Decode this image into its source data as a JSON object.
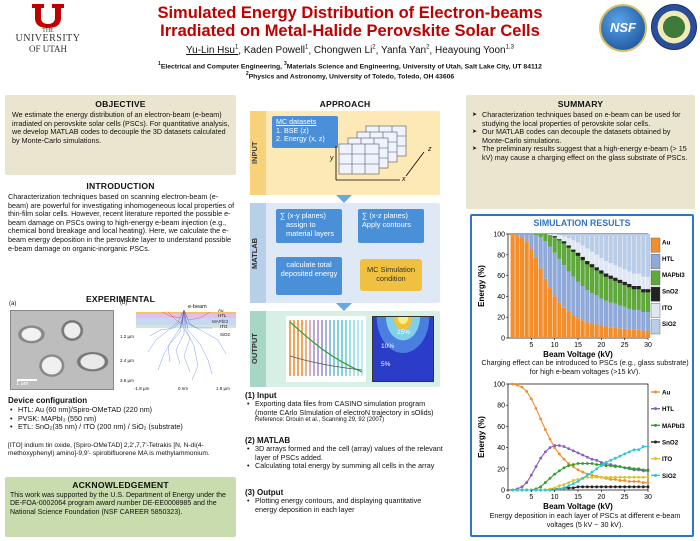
{
  "header": {
    "logo_text": [
      "THE",
      "UNIVERSITY",
      "OF UTAH"
    ],
    "title_line1": "Simulated Energy Distribution of Electron-beams",
    "title_line2": "Irradiated on Metal-Halide Perovskite Solar Cells",
    "authors": [
      {
        "name": "Yu-Lin Hsu",
        "sup": "1"
      },
      {
        "name": "Kaden Powell",
        "sup": "1"
      },
      {
        "name": "Chongwen Li",
        "sup": "2"
      },
      {
        "name": "Yanfa Yan",
        "sup": "2"
      },
      {
        "name": "Heayoung Yoon",
        "sup": "1,3"
      }
    ],
    "affil1_sup": "1",
    "affil1a": "Electrical and Computer Engineering,",
    "affil1_sup3": "3",
    "affil1b": "Materials Science and Engineering, University of Utah, Salt Lake City, UT 84112",
    "affil2_sup": "2",
    "affil2": "Physics and Astronomy, University of Toledo, Toledo, OH 43606",
    "nsf_logo_text": "NSF"
  },
  "objective": {
    "heading": "OBJECTIVE",
    "text": "We estimate the energy distribution of an electron-beam (e-beam) irradiated on perovskite solar cells (PSCs). For quantitative analysis, we develop MATLAB codes to decouple the 3D datasets calculated by Monte-Carlo simulations."
  },
  "introduction": {
    "heading": "INTRODUCTION",
    "text": "Characterization techniques based on scanning electron-beam (e-beam) are powerful for investigating inhomogeneous local properties of thin-film solar cells. However, recent literature reported the possible e-beam damage on PSCs owing to high-energy e-beam injection (e.g., chemical bond breakage and local heating). Here, we calculate the e-beam energy deposition in the perovskite layer to understand possible e-beam damage on organic-inorganic PSCs."
  },
  "experimental": {
    "heading": "EXPERIMENTAL",
    "label_a": "(a)",
    "label_b": "(b)",
    "scale_bar": "1 µm",
    "ebeam_label": "e-beam",
    "layer_labels": [
      "Au",
      "HTL",
      "MAPbI3",
      "ITO",
      "SiO2"
    ],
    "depth_labels": [
      "1.2 µm",
      "2.4 µm",
      "3.6 µm"
    ],
    "x_labels": [
      "-1.8 µm",
      "0 nm",
      "1.8 µm"
    ],
    "device_heading": "Device configuration",
    "device_items": [
      "HTL: Au (60 nm)/Spiro-OMeTAD (220 nm)",
      "PVSK: MAPbI₃ (550 nm)",
      "ETL: SnO₂(35 nm) / ITO (200 nm) / SiO₂ (substrate)"
    ],
    "note": "[ITO] indium tin oxide, [Spiro-OMeTAD] 2,2',7,7'-Tetrakis [N, N-di(4-methoxyphenyl) amino]-9,9'- spirobifluorene  MA is methylammonium."
  },
  "acknowledgement": {
    "heading": "ACKNOWLEDGEMENT",
    "text": "This work was supported by the U.S. Department of Energy under the DE-FOA-0002064 program award number DE-EE0008985 and the National Science Foundation (NSF CAREER 5850323)."
  },
  "approach": {
    "heading": "APPROACH",
    "input_label": "INPUT",
    "matlab_label": "MATLAB",
    "output_label": "OUTPUT",
    "mc_title": "MC datasets",
    "mc_items": [
      "1. BSE (z)",
      "2. Energy (x, z)"
    ],
    "axis_x": "x",
    "axis_y": "y",
    "axis_z": "z",
    "matlab_box1": [
      "∑ (x-y planes)",
      "assign to material layers"
    ],
    "matlab_box2": [
      "∑ (x-z planes)",
      "Apply contours"
    ],
    "matlab_box3": "calculate total deposited energy",
    "matlab_box4": "MC Simulation condition",
    "contour_labels": [
      "25%",
      "10%",
      "5%"
    ],
    "steps": [
      {
        "num": "(1)",
        "title": "Input",
        "items": [
          "Exporting data files from CASINO simulation program (monte CArlo SImulation of electroN trajectory in sOlids)"
        ],
        "ref": "Reference: Drouin et al., Scanning 29, 92 (2007)"
      },
      {
        "num": "(2)",
        "title": "MATLAB",
        "items": [
          "3D arrays formed and the cell (array) values of the relevant layer of PSCs added.",
          "Calculating total energy by summing all cells in the array"
        ]
      },
      {
        "num": "(3)",
        "title": "Output",
        "items": [
          "Plotting energy contours, and displaying quantitative energy deposition in each layer"
        ]
      }
    ]
  },
  "summary": {
    "heading": "SUMMARY",
    "items": [
      "Characterization techniques based on e-beam can be used for studying the local properties of perovskite solar cells.",
      "Our MATLAB codes can decouple the datasets obtained by Monte-Carlo simulations.",
      "The preliminary results suggest that a high-energy e-beam (> 15 kV) may cause a charging effect on the glass substrate of PSCs."
    ]
  },
  "results": {
    "heading": "SIMULATION RESULTS",
    "caption1": "Charging effect can be introduced to PSCs (e.g., glass substrate) for high e-beam voltages (>15 kV).",
    "caption2": "Energy deposition in each layer of PSCs at different e-beam voltages (5 kV ~ 30 kV)."
  },
  "chart_data": [
    {
      "type": "area",
      "xlabel": "Beam Voltage (kV)",
      "ylabel": "Energy (%)",
      "xlim": [
        0,
        30
      ],
      "ylim": [
        0,
        100
      ],
      "xticks": [
        5,
        10,
        15,
        20,
        25,
        30
      ],
      "yticks": [
        0,
        20,
        40,
        60,
        80,
        100
      ],
      "x": [
        1,
        2,
        3,
        4,
        5,
        6,
        7,
        8,
        9,
        10,
        11,
        12,
        13,
        14,
        15,
        16,
        17,
        18,
        19,
        20,
        21,
        22,
        23,
        24,
        25,
        26,
        27,
        28,
        29,
        30
      ],
      "series": [
        {
          "name": "Au",
          "color": "#f28e2b",
          "values": [
            100,
            99,
            97,
            93,
            86,
            77,
            67,
            57,
            48,
            40,
            34,
            29,
            25,
            22,
            19,
            17,
            15,
            14,
            13,
            12,
            11,
            10,
            10,
            9,
            9,
            8,
            8,
            8,
            7,
            7
          ]
        },
        {
          "name": "HTL",
          "color": "#8fa9d9",
          "values": [
            0,
            1,
            3,
            7,
            14,
            22,
            30,
            36,
            40,
            42,
            42,
            41,
            39,
            37,
            35,
            33,
            31,
            29,
            28,
            26,
            25,
            24,
            23,
            22,
            21,
            20,
            19,
            19,
            18,
            18
          ]
        },
        {
          "name": "MAPbI3",
          "color": "#5fa93c",
          "values": [
            0,
            0,
            0,
            0,
            0,
            1,
            3,
            7,
            11,
            15,
            18,
            21,
            23,
            24,
            25,
            25,
            25,
            25,
            24,
            24,
            23,
            23,
            22,
            22,
            21,
            21,
            20,
            20,
            19,
            19
          ]
        },
        {
          "name": "SnO2",
          "color": "#222222",
          "values": [
            0,
            0,
            0,
            0,
            0,
            0,
            0,
            0,
            0,
            1,
            1,
            2,
            2,
            2,
            3,
            3,
            3,
            3,
            3,
            3,
            3,
            3,
            3,
            3,
            3,
            3,
            3,
            3,
            3,
            3
          ]
        },
        {
          "name": "ITO",
          "color": "#dfe8f2",
          "values": [
            0,
            0,
            0,
            0,
            0,
            0,
            0,
            0,
            1,
            2,
            4,
            5,
            7,
            9,
            10,
            11,
            12,
            12,
            12,
            12,
            12,
            12,
            12,
            12,
            12,
            12,
            12,
            12,
            12,
            12
          ]
        },
        {
          "name": "SiO2",
          "color": "#b9cde6",
          "values": [
            0,
            0,
            0,
            0,
            0,
            0,
            0,
            0,
            0,
            0,
            1,
            2,
            4,
            6,
            8,
            11,
            14,
            17,
            20,
            23,
            26,
            28,
            30,
            32,
            34,
            36,
            38,
            38,
            41,
            41
          ]
        }
      ]
    },
    {
      "type": "line",
      "xlabel": "Beam Voltage (kV)",
      "ylabel": "Energy (%)",
      "xlim": [
        0,
        30
      ],
      "ylim": [
        0,
        100
      ],
      "xticks": [
        0,
        5,
        10,
        15,
        20,
        25,
        30
      ],
      "yticks": [
        0,
        20,
        40,
        60,
        80,
        100
      ],
      "x": [
        1,
        2,
        3,
        4,
        5,
        6,
        7,
        8,
        9,
        10,
        11,
        12,
        13,
        14,
        15,
        16,
        17,
        18,
        19,
        20,
        21,
        22,
        23,
        24,
        25,
        26,
        27,
        28,
        29,
        30
      ],
      "series": [
        {
          "name": "Au",
          "color": "#f28e2b",
          "values": [
            100,
            99,
            97,
            93,
            86,
            77,
            67,
            57,
            48,
            40,
            34,
            29,
            25,
            22,
            19,
            17,
            15,
            14,
            13,
            12,
            11,
            10,
            10,
            9,
            9,
            8,
            8,
            8,
            7,
            7
          ]
        },
        {
          "name": "HTL",
          "color": "#8a5cc4",
          "values": [
            0,
            1,
            3,
            7,
            14,
            22,
            30,
            36,
            40,
            42,
            42,
            41,
            39,
            37,
            35,
            33,
            31,
            29,
            28,
            26,
            25,
            24,
            23,
            22,
            21,
            20,
            19,
            19,
            18,
            18
          ]
        },
        {
          "name": "MAPbI3",
          "color": "#2ca02c",
          "values": [
            0,
            0,
            0,
            0,
            0,
            1,
            3,
            7,
            11,
            15,
            18,
            21,
            23,
            24,
            25,
            25,
            25,
            25,
            24,
            24,
            23,
            23,
            22,
            22,
            21,
            21,
            20,
            20,
            19,
            19
          ]
        },
        {
          "name": "SnO2",
          "color": "#222222",
          "values": [
            0,
            0,
            0,
            0,
            0,
            0,
            0,
            0,
            0,
            1,
            1,
            2,
            2,
            2,
            3,
            3,
            3,
            3,
            3,
            3,
            3,
            3,
            3,
            3,
            3,
            3,
            3,
            3,
            3,
            3
          ]
        },
        {
          "name": "ITO",
          "color": "#e0c21a",
          "values": [
            0,
            0,
            0,
            0,
            0,
            0,
            0,
            0,
            1,
            2,
            4,
            5,
            7,
            9,
            10,
            11,
            12,
            12,
            12,
            12,
            12,
            12,
            12,
            12,
            12,
            12,
            12,
            12,
            12,
            12
          ]
        },
        {
          "name": "SiO2",
          "color": "#2ac7d8",
          "values": [
            0,
            0,
            0,
            0,
            0,
            0,
            0,
            0,
            0,
            0,
            1,
            2,
            4,
            6,
            8,
            11,
            14,
            17,
            20,
            23,
            26,
            28,
            30,
            32,
            34,
            36,
            38,
            38,
            41,
            41
          ]
        }
      ]
    }
  ]
}
